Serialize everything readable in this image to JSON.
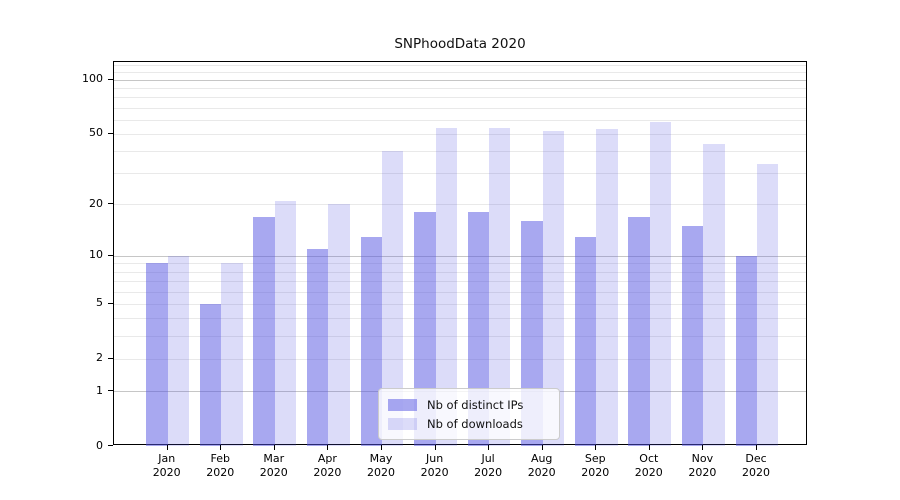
{
  "title": "SNPhoodData 2020",
  "colors": {
    "bar_dark": "rgba(81,81,225,0.5)",
    "bar_light": "rgba(81,81,225,0.2)",
    "grid_major": "#c6c6c6",
    "grid_minor": "#e9e9e9",
    "spine": "#000000"
  },
  "chart_data": {
    "type": "bar",
    "title": "SNPhoodData 2020",
    "xlabel": "",
    "ylabel": "",
    "scale": "log10(1+v)",
    "ylim": [
      0,
      125
    ],
    "grid": true,
    "yticks": [
      0,
      1,
      2,
      5,
      10,
      20,
      50,
      100
    ],
    "ytick_labels": [
      "0",
      "1",
      "2",
      "5",
      "10",
      "20",
      "50",
      "100"
    ],
    "grid_major_values": [
      1,
      10,
      100
    ],
    "grid_minor_values": [
      2,
      3,
      4,
      5,
      6,
      7,
      8,
      9,
      20,
      30,
      40,
      50,
      60,
      70,
      80,
      90,
      110,
      120
    ],
    "categories": [
      "Jan 2020",
      "Feb 2020",
      "Mar 2020",
      "Apr 2020",
      "May 2020",
      "Jun 2020",
      "Jul 2020",
      "Aug 2020",
      "Sep 2020",
      "Oct 2020",
      "Nov 2020",
      "Dec 2020"
    ],
    "series": [
      {
        "name": "Nb of distinct IPs",
        "color_key": "bar_dark",
        "values": [
          9,
          5,
          17,
          11,
          13,
          18,
          18,
          16,
          13,
          17,
          15,
          10
        ]
      },
      {
        "name": "Nb of downloads",
        "color_key": "bar_light",
        "values": [
          10,
          9,
          21,
          20,
          40,
          54,
          54,
          52,
          53,
          58,
          44,
          34
        ]
      }
    ],
    "legend_position": "lower-center-inside"
  }
}
